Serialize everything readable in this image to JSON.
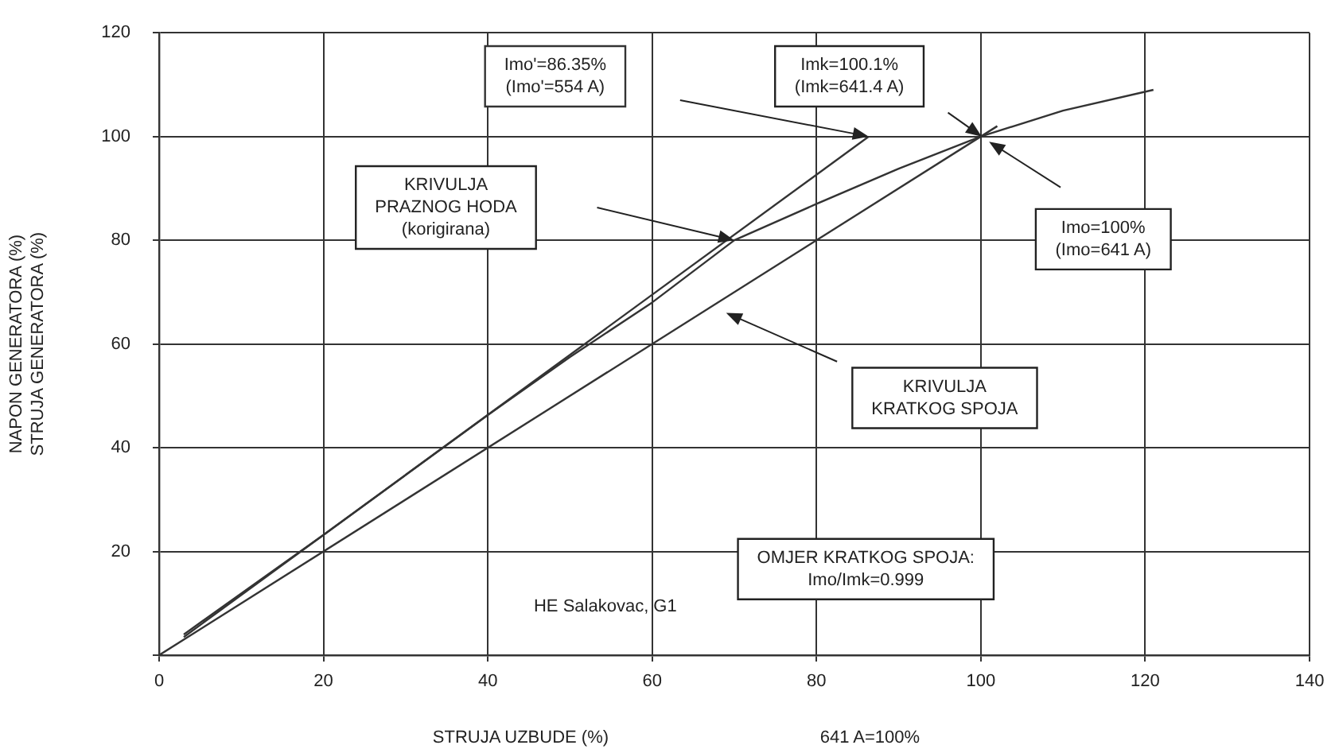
{
  "chart_data": {
    "type": "line",
    "xlabel": "STRUJA UZBUDE (%)",
    "ylabel": "NAPON GENERATORA (%)\nSTRUJA GENERATORA (%)",
    "xlim": [
      0,
      140
    ],
    "xticks": [
      0,
      20,
      40,
      60,
      80,
      100,
      120,
      140
    ],
    "ylim": [
      0,
      120
    ],
    "yticks": [
      {
        "value": 0,
        "label": null
      },
      20,
      40,
      60,
      80,
      100,
      120
    ],
    "grid": true,
    "legend": false,
    "marker": "none",
    "line_style": "solid",
    "series": [
      {
        "color": "#333333",
        "x": [
          3,
          86.35
        ],
        "values": [
          3.5,
          100
        ]
      },
      {
        "color": "#333333",
        "x": [
          3,
          20,
          40,
          50,
          60,
          70,
          80,
          90,
          100,
          110,
          121
        ],
        "values": [
          4,
          23.2,
          46.3,
          57.5,
          68,
          80,
          87,
          93.8,
          100,
          105,
          109
        ]
      },
      {
        "color": "#333333",
        "x": [
          0,
          102
        ],
        "values": [
          0,
          102
        ]
      }
    ],
    "annotations": [
      "Imo'=86.35%\n(Imo'=554 A)",
      "Imk=100.1%\n(Imk=641.4 A)",
      "KRIVULJA\nPRAZNOG HODA\n(korigirana)",
      "Imo=100%\n(Imo=641 A)",
      "KRIVULJA\nKRATKOG SPOJA",
      "OMJER KRATKOG SPOJA:\nImo/Imk=0.999",
      "HE Salakovac, G1",
      "641 A=100%"
    ]
  }
}
